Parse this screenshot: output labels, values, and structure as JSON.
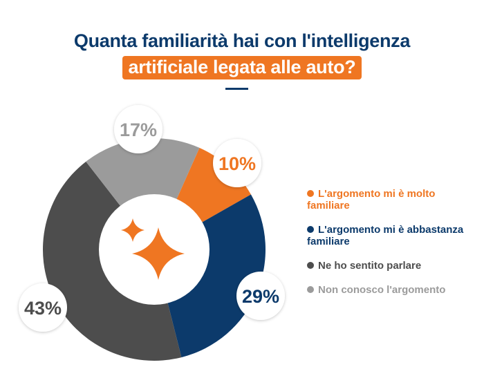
{
  "chart_data": {
    "type": "pie",
    "donut": true,
    "title_line1": "Quanta familiarità hai con l'intelligenza",
    "title_line2": "artificiale legata alle auto?",
    "legend_position": "right",
    "center_icon": "sparkles-icon",
    "series": [
      {
        "name": "L'argomento mi è molto familiare",
        "value": 10,
        "label": "10%",
        "color": "#ef7622"
      },
      {
        "name": "L'argomento mi è abbastanza familiare",
        "value": 29,
        "label": "29%",
        "color": "#0c3a6b"
      },
      {
        "name": "Ne ho sentito parlare",
        "value": 43,
        "label": "43%",
        "color": "#4d4d4d"
      },
      {
        "name": "Non conosco l'argomento",
        "value": 17,
        "label": "17%",
        "color": "#9b9b9b"
      }
    ]
  }
}
